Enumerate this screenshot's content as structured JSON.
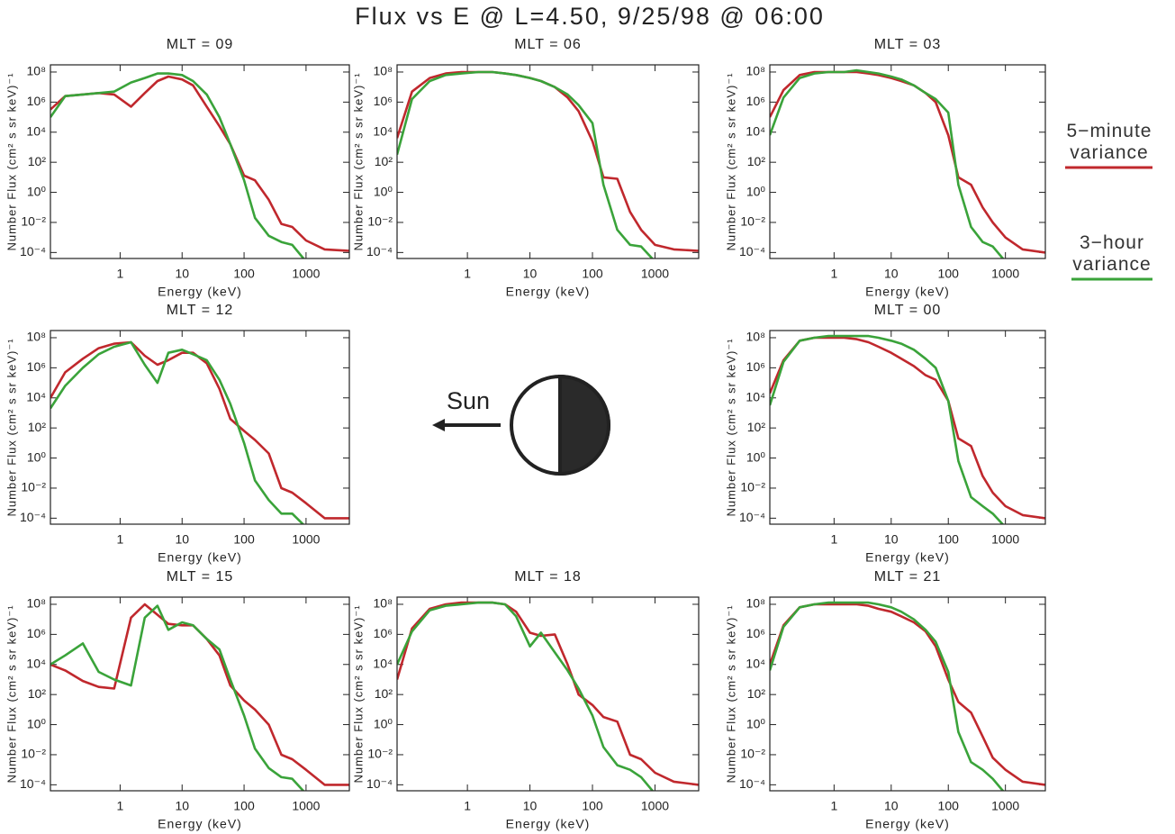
{
  "title": "Flux vs E @ L=4.50, 9/25/98 @ 06:00",
  "annotation": "Sun",
  "chart_data": [
    {
      "type": "line",
      "title": "MLT = 09",
      "xlabel": "Energy (keV)",
      "ylabel": "Number Flux (cm² s sr keV)⁻¹",
      "xlog": true,
      "ylog": true,
      "xlim": [
        0.075,
        5000
      ],
      "ylim": [
        4e-05,
        300000000.0
      ],
      "xticks": [
        1,
        10,
        100,
        1000
      ],
      "yticks": [
        {
          "value": 0.0001,
          "label": "10⁻⁴"
        },
        {
          "value": 0.01,
          "label": "10⁻²"
        },
        {
          "value": 1,
          "label": "10⁰"
        },
        {
          "value": 100,
          "label": "10²"
        },
        {
          "value": 10000.0,
          "label": "10⁴"
        },
        {
          "value": 1000000.0,
          "label": "10⁶"
        },
        {
          "value": 100000000.0,
          "label": "10⁸"
        }
      ],
      "x": [
        0.075,
        0.13,
        0.25,
        0.45,
        0.8,
        1.5,
        2.5,
        4,
        6,
        10,
        15,
        25,
        40,
        60,
        100,
        150,
        250,
        400,
        600,
        1000,
        2000,
        5000
      ],
      "series": [
        {
          "name": "5−minute variance",
          "color": "#c0282d",
          "values": [
            320000.0,
            2500000.0,
            3200000.0,
            4000000.0,
            3200000.0,
            500000.0,
            4000000.0,
            25000000.0,
            50000000.0,
            32000000.0,
            13000000.0,
            500000.0,
            25000.0,
            1600.0,
            13,
            6.3,
            0.32,
            0.008,
            0.005,
            0.00063,
            0.00016,
            0.00013
          ]
        },
        {
          "name": "3−hour variance",
          "color": "#3aa33a",
          "values": [
            100000.0,
            2500000.0,
            3200000.0,
            4000000.0,
            5000000.0,
            20000000.0,
            40000000.0,
            80000000.0,
            80000000.0,
            63000000.0,
            25000000.0,
            3200000.0,
            100000.0,
            1600.0,
            6.3,
            0.02,
            0.0013,
            0.0005,
            0.00032,
            2.5e-05,
            null,
            null
          ]
        }
      ]
    },
    {
      "type": "line",
      "title": "MLT = 06",
      "xlabel": "Energy (keV)",
      "ylabel": "Number Flux (cm² s sr keV)⁻¹",
      "xlog": true,
      "ylog": true,
      "xlim": [
        0.075,
        5000
      ],
      "ylim": [
        4e-05,
        300000000.0
      ],
      "xticks": [
        1,
        10,
        100,
        1000
      ],
      "yticks": [
        {
          "value": 0.0001,
          "label": "10⁻⁴"
        },
        {
          "value": 0.01,
          "label": "10⁻²"
        },
        {
          "value": 1,
          "label": "10⁰"
        },
        {
          "value": 100,
          "label": "10²"
        },
        {
          "value": 10000.0,
          "label": "10⁴"
        },
        {
          "value": 1000000.0,
          "label": "10⁶"
        },
        {
          "value": 100000000.0,
          "label": "10⁸"
        }
      ],
      "x": [
        0.075,
        0.13,
        0.25,
        0.45,
        0.8,
        1.5,
        2.5,
        4,
        6,
        10,
        15,
        25,
        40,
        60,
        100,
        150,
        250,
        400,
        600,
        1000,
        2000,
        5000
      ],
      "series": [
        {
          "name": "5−minute variance",
          "color": "#c0282d",
          "values": [
            4000.0,
            5000000.0,
            40000000.0,
            80000000.0,
            100000000.0,
            100000000.0,
            100000000.0,
            80000000.0,
            63000000.0,
            40000000.0,
            25000000.0,
            10000000.0,
            2000000.0,
            250000.0,
            2500.0,
            10,
            8,
            0.05,
            0.0032,
            0.00032,
            0.00016,
            0.00013
          ]
        },
        {
          "name": "3−hour variance",
          "color": "#3aa33a",
          "values": [
            320,
            1600000.0,
            25000000.0,
            63000000.0,
            80000000.0,
            100000000.0,
            100000000.0,
            80000000.0,
            63000000.0,
            40000000.0,
            25000000.0,
            10000000.0,
            3200000.0,
            630000.0,
            40000.0,
            3.2,
            0.0032,
            0.00032,
            0.00025,
            2.5e-05,
            null,
            null
          ]
        }
      ]
    },
    {
      "type": "line",
      "title": "MLT = 03",
      "xlabel": "Energy (keV)",
      "ylabel": "Number Flux (cm² s sr keV)⁻¹",
      "xlog": true,
      "ylog": true,
      "xlim": [
        0.075,
        5000
      ],
      "ylim": [
        4e-05,
        300000000.0
      ],
      "xticks": [
        1,
        10,
        100,
        1000
      ],
      "yticks": [
        {
          "value": 0.0001,
          "label": "10⁻⁴"
        },
        {
          "value": 0.01,
          "label": "10⁻²"
        },
        {
          "value": 1,
          "label": "10⁰"
        },
        {
          "value": 100,
          "label": "10²"
        },
        {
          "value": 10000.0,
          "label": "10⁴"
        },
        {
          "value": 1000000.0,
          "label": "10⁶"
        },
        {
          "value": 100000000.0,
          "label": "10⁸"
        }
      ],
      "x": [
        0.075,
        0.13,
        0.25,
        0.45,
        0.8,
        1.5,
        2.5,
        4,
        6,
        10,
        15,
        25,
        40,
        60,
        100,
        150,
        250,
        400,
        600,
        1000,
        2000,
        5000
      ],
      "series": [
        {
          "name": "5−minute variance",
          "color": "#c0282d",
          "values": [
            100000.0,
            6300000.0,
            63000000.0,
            100000000.0,
            100000000.0,
            100000000.0,
            100000000.0,
            80000000.0,
            63000000.0,
            40000000.0,
            25000000.0,
            13000000.0,
            4000000.0,
            1000000.0,
            6300.0,
            10,
            3.2,
            0.1,
            0.01,
            0.001,
            0.00016,
            0.0001
          ]
        },
        {
          "name": "3−hour variance",
          "color": "#3aa33a",
          "values": [
            6300.0,
            2000000.0,
            40000000.0,
            80000000.0,
            100000000.0,
            100000000.0,
            130000000.0,
            100000000.0,
            80000000.0,
            50000000.0,
            32000000.0,
            13000000.0,
            4000000.0,
            1600000.0,
            200000.0,
            3.2,
            0.005,
            0.0005,
            0.00025,
            2.5e-05,
            null,
            null
          ]
        }
      ]
    },
    {
      "type": "line",
      "title": "MLT = 12",
      "xlabel": "Energy (keV)",
      "ylabel": "Number Flux (cm² s sr keV)⁻¹",
      "xlog": true,
      "ylog": true,
      "xlim": [
        0.075,
        5000
      ],
      "ylim": [
        4e-05,
        300000000.0
      ],
      "xticks": [
        1,
        10,
        100,
        1000
      ],
      "yticks": [
        {
          "value": 0.0001,
          "label": "10⁻⁴"
        },
        {
          "value": 0.01,
          "label": "10⁻²"
        },
        {
          "value": 1,
          "label": "10⁰"
        },
        {
          "value": 100,
          "label": "10²"
        },
        {
          "value": 10000.0,
          "label": "10⁴"
        },
        {
          "value": 1000000.0,
          "label": "10⁶"
        },
        {
          "value": 100000000.0,
          "label": "10⁸"
        }
      ],
      "x": [
        0.075,
        0.13,
        0.25,
        0.45,
        0.8,
        1.5,
        2.5,
        4,
        6,
        10,
        15,
        25,
        40,
        60,
        100,
        150,
        250,
        400,
        600,
        1000,
        2000,
        5000
      ],
      "series": [
        {
          "name": "5−minute variance",
          "color": "#c0282d",
          "values": [
            10000.0,
            500000.0,
            4000000.0,
            20000000.0,
            40000000.0,
            50000000.0,
            6300000.0,
            1600000.0,
            3200000.0,
            10000000.0,
            10000000.0,
            2000000.0,
            40000.0,
            400,
            63,
            16,
            2,
            0.01,
            0.005,
            0.001,
            0.0001,
            0.0001
          ]
        },
        {
          "name": "3−hour variance",
          "color": "#3aa33a",
          "values": [
            2000.0,
            63000.0,
            1000000.0,
            8000000.0,
            25000000.0,
            50000000.0,
            1600000.0,
            100000.0,
            10000000.0,
            16000000.0,
            8000000.0,
            3200000.0,
            160000.0,
            4000.0,
            10,
            0.032,
            0.0016,
            0.0002,
            0.0002,
            2.5e-05,
            null,
            null
          ]
        }
      ]
    },
    {
      "type": "line",
      "title": "MLT = 00",
      "xlabel": "Energy (keV)",
      "ylabel": "Number Flux (cm² s sr keV)⁻¹",
      "xlog": true,
      "ylog": true,
      "xlim": [
        0.075,
        5000
      ],
      "ylim": [
        4e-05,
        300000000.0
      ],
      "xticks": [
        1,
        10,
        100,
        1000
      ],
      "yticks": [
        {
          "value": 0.0001,
          "label": "10⁻⁴"
        },
        {
          "value": 0.01,
          "label": "10⁻²"
        },
        {
          "value": 1,
          "label": "10⁰"
        },
        {
          "value": 100,
          "label": "10²"
        },
        {
          "value": 10000.0,
          "label": "10⁴"
        },
        {
          "value": 1000000.0,
          "label": "10⁶"
        },
        {
          "value": 100000000.0,
          "label": "10⁸"
        }
      ],
      "x": [
        0.075,
        0.13,
        0.25,
        0.45,
        0.8,
        1.5,
        2.5,
        4,
        6,
        10,
        15,
        25,
        40,
        60,
        100,
        150,
        250,
        400,
        600,
        1000,
        2000,
        5000
      ],
      "series": [
        {
          "name": "5−minute variance",
          "color": "#c0282d",
          "values": [
            20000.0,
            3200000.0,
            63000000.0,
            100000000.0,
            100000000.0,
            100000000.0,
            80000000.0,
            50000000.0,
            25000000.0,
            10000000.0,
            4000000.0,
            1300000.0,
            320000.0,
            160000.0,
            6300.0,
            20,
            6.3,
            0.063,
            0.005,
            0.00063,
            0.00016,
            0.0001
          ]
        },
        {
          "name": "3−hour variance",
          "color": "#3aa33a",
          "values": [
            3200.0,
            2500000.0,
            63000000.0,
            100000000.0,
            130000000.0,
            130000000.0,
            130000000.0,
            130000000.0,
            100000000.0,
            63000000.0,
            40000000.0,
            16000000.0,
            4000000.0,
            1000000.0,
            6300.0,
            0.63,
            0.0025,
            0.00063,
            0.0002,
            2.5e-05,
            null,
            null
          ]
        }
      ]
    },
    {
      "type": "line",
      "title": "MLT = 15",
      "xlabel": "Energy (keV)",
      "ylabel": "Number Flux (cm² s sr keV)⁻¹",
      "xlog": true,
      "ylog": true,
      "xlim": [
        0.075,
        5000
      ],
      "ylim": [
        4e-05,
        300000000.0
      ],
      "xticks": [
        1,
        10,
        100,
        1000
      ],
      "yticks": [
        {
          "value": 0.0001,
          "label": "10⁻⁴"
        },
        {
          "value": 0.01,
          "label": "10⁻²"
        },
        {
          "value": 1,
          "label": "10⁰"
        },
        {
          "value": 100,
          "label": "10²"
        },
        {
          "value": 10000.0,
          "label": "10⁴"
        },
        {
          "value": 1000000.0,
          "label": "10⁶"
        },
        {
          "value": 100000000.0,
          "label": "10⁸"
        }
      ],
      "x": [
        0.075,
        0.13,
        0.25,
        0.45,
        0.8,
        1.5,
        2.5,
        4,
        6,
        10,
        15,
        25,
        40,
        60,
        100,
        150,
        250,
        400,
        600,
        1000,
        2000,
        5000
      ],
      "series": [
        {
          "name": "5−minute variance",
          "color": "#c0282d",
          "values": [
            10000.0,
            4000.0,
            800,
            320,
            250,
            13000000.0,
            100000000.0,
            20000000.0,
            5000000.0,
            4000000.0,
            4000000.0,
            500000.0,
            40000.0,
            400,
            40,
            10,
            1,
            0.01,
            0.005,
            0.001,
            0.0001,
            0.0001
          ]
        },
        {
          "name": "3−hour variance",
          "color": "#3aa33a",
          "values": [
            10000.0,
            40000.0,
            250000.0,
            3200.0,
            1000.0,
            400,
            13000000.0,
            80000000.0,
            2000000.0,
            6300000.0,
            4000000.0,
            500000.0,
            100000.0,
            1000.0,
            4,
            0.025,
            0.0013,
            0.00032,
            0.00025,
            2.5e-05,
            null,
            null
          ]
        }
      ]
    },
    {
      "type": "line",
      "title": "MLT = 18",
      "xlabel": "Energy (keV)",
      "ylabel": "Number Flux (cm² s sr keV)⁻¹",
      "xlog": true,
      "ylog": true,
      "xlim": [
        0.075,
        5000
      ],
      "ylim": [
        4e-05,
        300000000.0
      ],
      "xticks": [
        1,
        10,
        100,
        1000
      ],
      "yticks": [
        {
          "value": 0.0001,
          "label": "10⁻⁴"
        },
        {
          "value": 0.01,
          "label": "10⁻²"
        },
        {
          "value": 1,
          "label": "10⁰"
        },
        {
          "value": 100,
          "label": "10²"
        },
        {
          "value": 10000.0,
          "label": "10⁴"
        },
        {
          "value": 1000000.0,
          "label": "10⁶"
        },
        {
          "value": 100000000.0,
          "label": "10⁸"
        }
      ],
      "x": [
        0.075,
        0.13,
        0.25,
        0.45,
        0.8,
        1.5,
        2.5,
        4,
        6,
        10,
        15,
        25,
        40,
        60,
        100,
        150,
        250,
        400,
        600,
        1000,
        2000,
        5000
      ],
      "series": [
        {
          "name": "5−minute variance",
          "color": "#c0282d",
          "values": [
            1000.0,
            2500000.0,
            50000000.0,
            100000000.0,
            130000000.0,
            130000000.0,
            130000000.0,
            100000000.0,
            32000000.0,
            1300000.0,
            800000.0,
            1000000.0,
            10000.0,
            100,
            20,
            3.2,
            1.6,
            0.01,
            0.005,
            0.00063,
            0.00016,
            0.0001
          ]
        },
        {
          "name": "3−hour variance",
          "color": "#3aa33a",
          "values": [
            10000.0,
            1600000.0,
            40000000.0,
            80000000.0,
            100000000.0,
            130000000.0,
            130000000.0,
            100000000.0,
            16000000.0,
            160000.0,
            1300000.0,
            63000.0,
            4000.0,
            250,
            4,
            0.032,
            0.002,
            0.001,
            0.00032,
            2.5e-05,
            null,
            null
          ]
        }
      ]
    },
    {
      "type": "line",
      "title": "MLT = 21",
      "xlabel": "Energy (keV)",
      "ylabel": "Number Flux (cm² s sr keV)⁻¹",
      "xlog": true,
      "ylog": true,
      "xlim": [
        0.075,
        5000
      ],
      "ylim": [
        4e-05,
        300000000.0
      ],
      "xticks": [
        1,
        10,
        100,
        1000
      ],
      "yticks": [
        {
          "value": 0.0001,
          "label": "10⁻⁴"
        },
        {
          "value": 0.01,
          "label": "10⁻²"
        },
        {
          "value": 1,
          "label": "10⁰"
        },
        {
          "value": 100,
          "label": "10²"
        },
        {
          "value": 10000.0,
          "label": "10⁴"
        },
        {
          "value": 1000000.0,
          "label": "10⁶"
        },
        {
          "value": 100000000.0,
          "label": "10⁸"
        }
      ],
      "x": [
        0.075,
        0.13,
        0.25,
        0.45,
        0.8,
        1.5,
        2.5,
        4,
        6,
        10,
        15,
        25,
        40,
        60,
        100,
        150,
        250,
        400,
        600,
        1000,
        2000,
        5000
      ],
      "series": [
        {
          "name": "5−minute variance",
          "color": "#c0282d",
          "values": [
            10000.0,
            4000000.0,
            63000000.0,
            100000000.0,
            100000000.0,
            100000000.0,
            100000000.0,
            80000000.0,
            50000000.0,
            32000000.0,
            16000000.0,
            6300000.0,
            1600000.0,
            160000.0,
            1000.0,
            32,
            6.3,
            0.16,
            0.0063,
            0.001,
            0.00016,
            0.0001
          ]
        },
        {
          "name": "3−hour variance",
          "color": "#3aa33a",
          "values": [
            4000.0,
            3200000.0,
            63000000.0,
            100000000.0,
            130000000.0,
            130000000.0,
            130000000.0,
            130000000.0,
            100000000.0,
            63000000.0,
            32000000.0,
            10000000.0,
            2000000.0,
            320000.0,
            3200.0,
            0.32,
            0.0032,
            0.001,
            0.00025,
            2.5e-05,
            null,
            null
          ]
        }
      ]
    }
  ]
}
